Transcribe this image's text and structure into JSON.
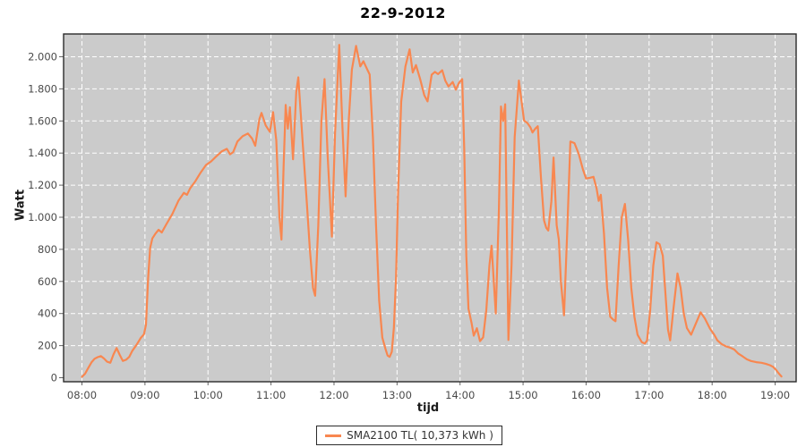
{
  "title": "22-9-2012",
  "y_axis": {
    "title": "Watt"
  },
  "x_axis": {
    "title": "tijd"
  },
  "legend": {
    "label": "SMA2100 TL( 10,373 kWh )"
  },
  "colors": {
    "line": "#F88750",
    "plot_bg": "#CBCBCB",
    "grid": "#FFFFFF",
    "border": "#2B2B2B",
    "tick": "#666666",
    "tick_text": "#4A4A4A",
    "title_text": "#000000"
  },
  "chart_data": {
    "type": "line",
    "title": "22-9-2012",
    "xlabel": "tijd",
    "ylabel": "Watt",
    "x_unit": "minutes since 08:00",
    "ylim": [
      0,
      2150
    ],
    "xlim_minutes": [
      -18,
      679
    ],
    "grid": true,
    "legend_position": "bottom",
    "x_ticks": [
      {
        "t": 0,
        "label": "08:00"
      },
      {
        "t": 60,
        "label": "09:00"
      },
      {
        "t": 120,
        "label": "10:00"
      },
      {
        "t": 180,
        "label": "11:00"
      },
      {
        "t": 240,
        "label": "12:00"
      },
      {
        "t": 300,
        "label": "13:00"
      },
      {
        "t": 360,
        "label": "14:00"
      },
      {
        "t": 420,
        "label": "15:00"
      },
      {
        "t": 480,
        "label": "16:00"
      },
      {
        "t": 540,
        "label": "17:00"
      },
      {
        "t": 600,
        "label": "18:00"
      },
      {
        "t": 660,
        "label": "19:00"
      }
    ],
    "y_ticks": [
      {
        "v": 0,
        "label": "0"
      },
      {
        "v": 200,
        "label": "200"
      },
      {
        "v": 400,
        "label": "400"
      },
      {
        "v": 600,
        "label": "600"
      },
      {
        "v": 800,
        "label": "800"
      },
      {
        "v": 1000,
        "label": "1.000"
      },
      {
        "v": 1200,
        "label": "1.200"
      },
      {
        "v": 1400,
        "label": "1.400"
      },
      {
        "v": 1600,
        "label": "1.600"
      },
      {
        "v": 1800,
        "label": "1.800"
      },
      {
        "v": 2000,
        "label": "2.000"
      }
    ],
    "series": [
      {
        "name": "SMA2100 TL( 10,373 kWh )",
        "color": "#F88750",
        "points": [
          [
            0,
            5
          ],
          [
            3,
            25
          ],
          [
            6,
            60
          ],
          [
            9,
            95
          ],
          [
            12,
            118
          ],
          [
            15,
            128
          ],
          [
            18,
            135
          ],
          [
            21,
            120
          ],
          [
            24,
            100
          ],
          [
            27,
            93
          ],
          [
            30,
            145
          ],
          [
            33,
            185
          ],
          [
            36,
            142
          ],
          [
            39,
            105
          ],
          [
            42,
            112
          ],
          [
            45,
            130
          ],
          [
            48,
            168
          ],
          [
            52,
            205
          ],
          [
            56,
            248
          ],
          [
            59,
            270
          ],
          [
            61,
            330
          ],
          [
            63,
            620
          ],
          [
            65,
            810
          ],
          [
            67,
            868
          ],
          [
            70,
            898
          ],
          [
            73,
            922
          ],
          [
            76,
            905
          ],
          [
            80,
            952
          ],
          [
            86,
            1020
          ],
          [
            92,
            1105
          ],
          [
            97,
            1152
          ],
          [
            100,
            1140
          ],
          [
            103,
            1180
          ],
          [
            108,
            1225
          ],
          [
            113,
            1278
          ],
          [
            118,
            1325
          ],
          [
            123,
            1348
          ],
          [
            128,
            1380
          ],
          [
            133,
            1410
          ],
          [
            138,
            1426
          ],
          [
            141,
            1392
          ],
          [
            144,
            1406
          ],
          [
            148,
            1472
          ],
          [
            153,
            1505
          ],
          [
            158,
            1522
          ],
          [
            162,
            1490
          ],
          [
            165,
            1445
          ],
          [
            169,
            1612
          ],
          [
            171,
            1650
          ],
          [
            175,
            1572
          ],
          [
            179,
            1532
          ],
          [
            182,
            1655
          ],
          [
            185,
            1480
          ],
          [
            188,
            1000
          ],
          [
            190,
            861
          ],
          [
            192,
            1320
          ],
          [
            194,
            1700
          ],
          [
            196,
            1552
          ],
          [
            198,
            1685
          ],
          [
            201,
            1361
          ],
          [
            204,
            1780
          ],
          [
            206,
            1872
          ],
          [
            210,
            1480
          ],
          [
            214,
            1100
          ],
          [
            217,
            800
          ],
          [
            220,
            560
          ],
          [
            222,
            511
          ],
          [
            225,
            950
          ],
          [
            228,
            1600
          ],
          [
            231,
            1861
          ],
          [
            234,
            1380
          ],
          [
            238,
            879
          ],
          [
            241,
            1520
          ],
          [
            245,
            2074
          ],
          [
            248,
            1560
          ],
          [
            251,
            1130
          ],
          [
            254,
            1600
          ],
          [
            257,
            1920
          ],
          [
            261,
            2068
          ],
          [
            265,
            1940
          ],
          [
            268,
            1972
          ],
          [
            271,
            1930
          ],
          [
            274,
            1889
          ],
          [
            277,
            1500
          ],
          [
            280,
            950
          ],
          [
            283,
            480
          ],
          [
            286,
            250
          ],
          [
            289,
            180
          ],
          [
            291,
            138
          ],
          [
            293,
            130
          ],
          [
            295,
            162
          ],
          [
            297,
            310
          ],
          [
            299,
            620
          ],
          [
            301,
            1150
          ],
          [
            304,
            1720
          ],
          [
            308,
            1940
          ],
          [
            312,
            2046
          ],
          [
            315,
            1902
          ],
          [
            318,
            1948
          ],
          [
            322,
            1862
          ],
          [
            326,
            1760
          ],
          [
            329,
            1722
          ],
          [
            333,
            1888
          ],
          [
            336,
            1906
          ],
          [
            339,
            1892
          ],
          [
            343,
            1916
          ],
          [
            346,
            1850
          ],
          [
            349,
            1815
          ],
          [
            353,
            1843
          ],
          [
            356,
            1795
          ],
          [
            359,
            1838
          ],
          [
            362,
            1861
          ],
          [
            364,
            1420
          ],
          [
            366,
            760
          ],
          [
            368,
            430
          ],
          [
            371,
            340
          ],
          [
            373,
            262
          ],
          [
            376,
            308
          ],
          [
            379,
            228
          ],
          [
            382,
            252
          ],
          [
            385,
            420
          ],
          [
            388,
            700
          ],
          [
            390,
            823
          ],
          [
            394,
            400
          ],
          [
            397,
            1050
          ],
          [
            399,
            1690
          ],
          [
            401,
            1600
          ],
          [
            403,
            1704
          ],
          [
            406,
            235
          ],
          [
            409,
            700
          ],
          [
            412,
            1500
          ],
          [
            416,
            1852
          ],
          [
            419,
            1700
          ],
          [
            421,
            1602
          ],
          [
            424,
            1588
          ],
          [
            427,
            1560
          ],
          [
            429,
            1528
          ],
          [
            432,
            1555
          ],
          [
            434,
            1567
          ],
          [
            437,
            1250
          ],
          [
            440,
            980
          ],
          [
            442,
            935
          ],
          [
            444,
            917
          ],
          [
            447,
            1100
          ],
          [
            449,
            1372
          ],
          [
            452,
            950
          ],
          [
            454,
            861
          ],
          [
            456,
            600
          ],
          [
            459,
            389
          ],
          [
            462,
            900
          ],
          [
            465,
            1472
          ],
          [
            469,
            1462
          ],
          [
            473,
            1395
          ],
          [
            477,
            1298
          ],
          [
            480,
            1241
          ],
          [
            484,
            1246
          ],
          [
            487,
            1252
          ],
          [
            490,
            1178
          ],
          [
            492,
            1102
          ],
          [
            494,
            1140
          ],
          [
            497,
            900
          ],
          [
            500,
            560
          ],
          [
            503,
            380
          ],
          [
            506,
            361
          ],
          [
            508,
            352
          ],
          [
            511,
            700
          ],
          [
            514,
            1000
          ],
          [
            517,
            1083
          ],
          [
            520,
            860
          ],
          [
            523,
            560
          ],
          [
            526,
            380
          ],
          [
            529,
            268
          ],
          [
            533,
            222
          ],
          [
            536,
            213
          ],
          [
            538,
            232
          ],
          [
            541,
            420
          ],
          [
            544,
            700
          ],
          [
            547,
            844
          ],
          [
            550,
            832
          ],
          [
            553,
            761
          ],
          [
            556,
            480
          ],
          [
            558,
            300
          ],
          [
            560,
            233
          ],
          [
            563,
            420
          ],
          [
            567,
            650
          ],
          [
            570,
            560
          ],
          [
            573,
            400
          ],
          [
            576,
            310
          ],
          [
            580,
            268
          ],
          [
            584,
            330
          ],
          [
            589,
            407
          ],
          [
            593,
            370
          ],
          [
            598,
            306
          ],
          [
            602,
            268
          ],
          [
            605,
            233
          ],
          [
            609,
            210
          ],
          [
            613,
            196
          ],
          [
            617,
            188
          ],
          [
            621,
            176
          ],
          [
            625,
            150
          ],
          [
            629,
            133
          ],
          [
            633,
            115
          ],
          [
            637,
            104
          ],
          [
            642,
            97
          ],
          [
            647,
            93
          ],
          [
            651,
            87
          ],
          [
            655,
            78
          ],
          [
            658,
            68
          ],
          [
            661,
            48
          ],
          [
            663,
            30
          ],
          [
            665,
            15
          ],
          [
            666,
            8
          ]
        ]
      }
    ]
  }
}
